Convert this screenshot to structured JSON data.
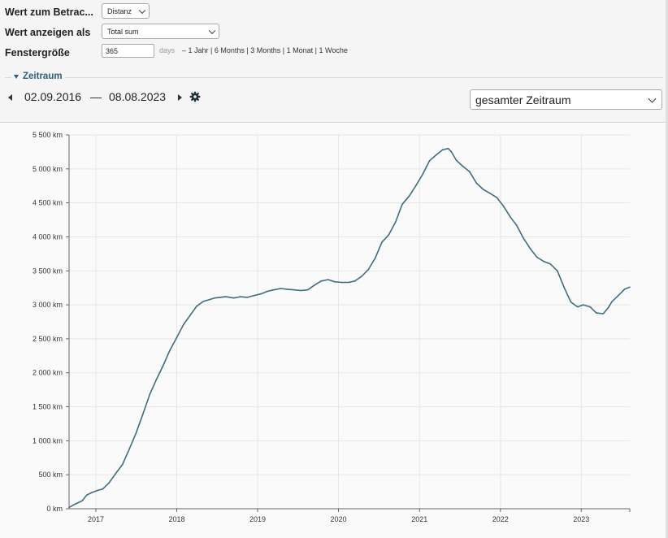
{
  "controls": {
    "measure": {
      "label": "Wert zum Betrac...",
      "value": "Distanz"
    },
    "display": {
      "label": "Wert anzeigen als",
      "value": "Total sum"
    },
    "window": {
      "label": "Fenstergröße",
      "value": "365",
      "unit": "days",
      "separator": "–"
    },
    "presets": [
      "1 Jahr",
      "6 Months",
      "3 Months",
      "1 Monat",
      "1 Woche"
    ],
    "preset_separator": " | "
  },
  "period": {
    "section_label": "Zeitraum",
    "start_date": "02.09.2016",
    "separator": "—",
    "end_date": "08.08.2023",
    "range_select": "gesamter Zeitraum"
  },
  "colors": {
    "line": "#3f6e80",
    "section": "#2e5e7e",
    "grid": "#e6e6e6",
    "axis": "#666666"
  },
  "icons": {
    "prev": "arrow-left-icon",
    "next": "arrow-right-icon",
    "settings": "gear-icon"
  },
  "chart_data": {
    "type": "line",
    "x_scale": "date",
    "xlim": [
      "2016-09-02",
      "2023-08-08"
    ],
    "ylim": [
      0,
      5500
    ],
    "y_ticks": [
      0,
      500,
      1000,
      1500,
      2000,
      2500,
      3000,
      3500,
      4000,
      4500,
      5000,
      5500
    ],
    "y_tick_labels": [
      "0 km",
      "500 km",
      "1 000 km",
      "1 500 km",
      "2 000 km",
      "2 500 km",
      "3 000 km",
      "3 500 km",
      "4 000 km",
      "4 500 km",
      "5 000 km",
      "5 500 km"
    ],
    "x_ticks": [
      "2017-01-01",
      "2018-01-01",
      "2019-01-01",
      "2020-01-01",
      "2021-01-01",
      "2022-01-01",
      "2023-01-01"
    ],
    "x_tick_labels": [
      "2017",
      "2018",
      "2019",
      "2020",
      "2021",
      "2022",
      "2023"
    ],
    "grid": true,
    "series": [
      {
        "x": [
          "2016-09-02",
          "2016-10-01",
          "2016-11-01",
          "2016-11-20",
          "2016-12-15",
          "2017-01-10",
          "2017-02-01",
          "2017-03-01",
          "2017-04-01",
          "2017-05-01",
          "2017-06-01",
          "2017-07-01",
          "2017-08-01",
          "2017-09-01",
          "2017-10-01",
          "2017-11-01",
          "2017-12-01",
          "2018-01-01",
          "2018-02-01",
          "2018-03-01",
          "2018-04-01",
          "2018-05-01",
          "2018-06-01",
          "2018-06-20",
          "2018-07-15",
          "2018-08-10",
          "2018-09-15",
          "2018-10-15",
          "2018-11-15",
          "2018-12-20",
          "2019-01-15",
          "2019-02-15",
          "2019-03-15",
          "2019-04-15",
          "2019-05-15",
          "2019-06-15",
          "2019-07-15",
          "2019-08-15",
          "2019-09-15",
          "2019-10-15",
          "2019-11-15",
          "2019-12-15",
          "2020-01-15",
          "2020-02-15",
          "2020-03-15",
          "2020-04-15",
          "2020-05-15",
          "2020-06-15",
          "2020-07-15",
          "2020-08-15",
          "2020-09-15",
          "2020-10-15",
          "2020-11-15",
          "2020-12-15",
          "2021-01-15",
          "2021-02-15",
          "2021-03-15",
          "2021-04-15",
          "2021-05-10",
          "2021-05-25",
          "2021-06-15",
          "2021-07-15",
          "2021-08-15",
          "2021-09-15",
          "2021-10-15",
          "2021-11-15",
          "2021-12-15",
          "2022-01-15",
          "2022-02-15",
          "2022-03-15",
          "2022-04-15",
          "2022-05-15",
          "2022-06-15",
          "2022-07-15",
          "2022-08-15",
          "2022-09-15",
          "2022-10-15",
          "2022-11-15",
          "2022-12-15",
          "2023-01-10",
          "2023-02-10",
          "2023-03-10",
          "2023-04-10",
          "2023-05-01",
          "2023-05-20",
          "2023-06-15",
          "2023-07-15",
          "2023-08-08"
        ],
        "y": [
          20,
          70,
          120,
          200,
          240,
          270,
          290,
          380,
          520,
          650,
          880,
          1110,
          1390,
          1680,
          1900,
          2110,
          2330,
          2520,
          2710,
          2840,
          2980,
          3050,
          3080,
          3100,
          3110,
          3120,
          3100,
          3120,
          3110,
          3140,
          3160,
          3200,
          3220,
          3240,
          3230,
          3220,
          3210,
          3220,
          3290,
          3350,
          3370,
          3340,
          3330,
          3330,
          3350,
          3420,
          3520,
          3690,
          3920,
          4030,
          4220,
          4480,
          4600,
          4750,
          4920,
          5120,
          5200,
          5280,
          5300,
          5250,
          5130,
          5040,
          4960,
          4790,
          4700,
          4640,
          4580,
          4450,
          4290,
          4170,
          3980,
          3830,
          3700,
          3640,
          3600,
          3500,
          3260,
          3040,
          2970,
          3000,
          2970,
          2880,
          2870,
          2950,
          3050,
          3130,
          3230,
          3260
        ]
      }
    ]
  }
}
